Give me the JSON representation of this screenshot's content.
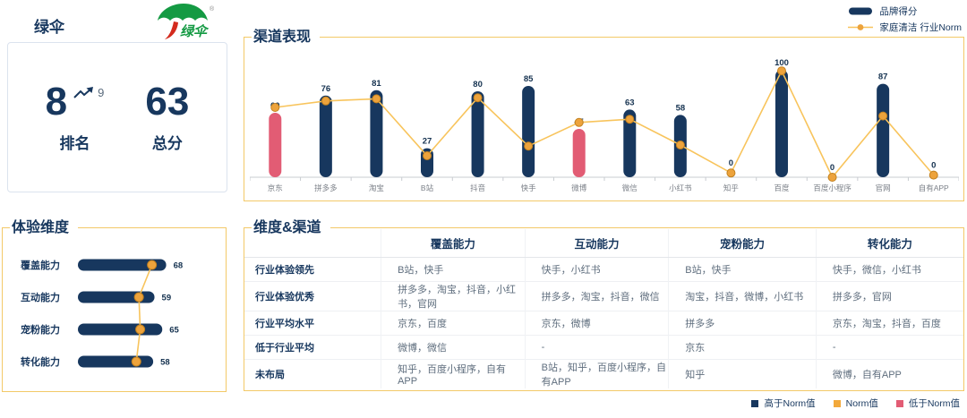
{
  "brand": {
    "name": "绿伞",
    "logo_text": "绿伞",
    "logo_reg": "®",
    "rank": {
      "value": "8",
      "trend_to": "9",
      "label": "排名"
    },
    "score": {
      "value": "63",
      "label": "总分"
    }
  },
  "sections": {
    "channel_title": "渠道表现",
    "dims_title": "体验维度",
    "matrix_title": "维度&渠道"
  },
  "legend_top": {
    "brand_label": "品牌得分",
    "norm_label": "家庭清洁 行业Norm"
  },
  "legend_bottom": [
    {
      "label": "高于Norm值",
      "color": "#17375e"
    },
    {
      "label": "Norm值",
      "color": "#f2a93b"
    },
    {
      "label": "低于Norm值",
      "color": "#e25c74"
    }
  ],
  "colors": {
    "navy": "#17375e",
    "pink": "#e25c74",
    "norm_dot": "#eda33c",
    "norm_dot_edge": "#c2811f",
    "norm_line": "#f8c45c",
    "axis": "#c9ccd1",
    "axis_label": "#7a7f87",
    "value_label": "#14314f"
  },
  "chart_data": [
    {
      "type": "bar",
      "title": "渠道表现",
      "categories": [
        "京东",
        "拼多多",
        "淘宝",
        "B站",
        "抖音",
        "快手",
        "微博",
        "微信",
        "小红书",
        "知乎",
        "百度",
        "百度小程序",
        "官网",
        "自有APP"
      ],
      "series": [
        {
          "name": "品牌得分",
          "values": [
            60,
            76,
            81,
            27,
            80,
            85,
            45,
            63,
            58,
            0,
            100,
            0,
            87,
            0
          ]
        },
        {
          "name": "家庭清洁 行业Norm",
          "values": [
            65,
            71,
            73,
            20,
            74,
            29,
            51,
            54,
            30,
            4,
            99,
            0,
            57,
            2
          ]
        }
      ],
      "ylim": [
        0,
        100
      ],
      "grid": false,
      "legend_position": "top-right",
      "note": "bars colored pink when brand score is below industry norm"
    },
    {
      "type": "bar",
      "title": "体验维度",
      "orientation": "horizontal",
      "categories": [
        "覆盖能力",
        "互动能力",
        "宠粉能力",
        "转化能力"
      ],
      "series": [
        {
          "name": "品牌得分",
          "values": [
            68,
            59,
            65,
            58
          ]
        },
        {
          "name": "行业Norm",
          "values": [
            57,
            47,
            48,
            45
          ]
        }
      ],
      "ylim": [
        0,
        100
      ],
      "grid": false
    }
  ],
  "table": {
    "headers": [
      "",
      "覆盖能力",
      "互动能力",
      "宠粉能力",
      "转化能力"
    ],
    "rows": [
      {
        "label": "行业体验领先",
        "cells": [
          "B站，快手",
          "快手，小红书",
          "B站，快手",
          "快手，微信，小红书"
        ]
      },
      {
        "label": "行业体验优秀",
        "cells": [
          "拼多多，淘宝，抖音，小红书，官网",
          "拼多多，淘宝，抖音，微信",
          "淘宝，抖音，微博，小红书",
          "拼多多，官网"
        ]
      },
      {
        "label": "行业平均水平",
        "cells": [
          "京东，百度",
          "京东，微博",
          "拼多多",
          "京东，淘宝，抖音，百度"
        ]
      },
      {
        "label": "低于行业平均",
        "cells": [
          "微博，微信",
          "-",
          "京东",
          "-"
        ]
      },
      {
        "label": "未布局",
        "cells": [
          "知乎，百度小程序，自有APP",
          "B站，知乎，百度小程序，自有APP",
          "知乎",
          "微博，自有APP"
        ]
      }
    ]
  }
}
